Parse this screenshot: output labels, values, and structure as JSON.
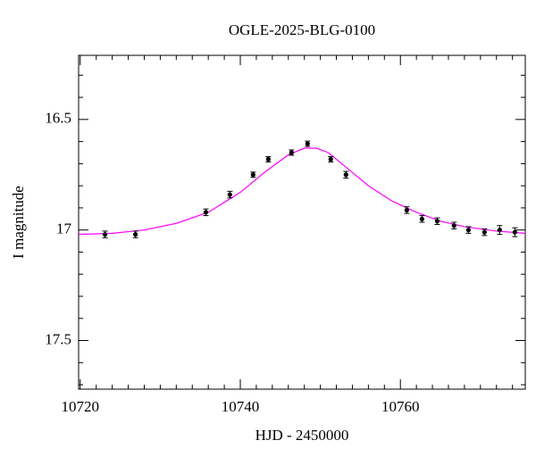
{
  "chart_data": {
    "type": "scatter",
    "title": "OGLE-2025-BLG-0100",
    "x_label": "HJD - 2450000",
    "y_label": "I magnitude",
    "xlim": [
      10719.8,
      10775.6
    ],
    "ylim": [
      17.72,
      16.21
    ],
    "xticks": [
      10720,
      10740,
      10760
    ],
    "yticks": [
      16.5,
      17,
      17.5
    ],
    "xminorticks": [
      10722,
      10724,
      10726,
      10728,
      10730,
      10732,
      10734,
      10736,
      10738,
      10742,
      10744,
      10746,
      10748,
      10750,
      10752,
      10754,
      10756,
      10758,
      10762,
      10764,
      10766,
      10768,
      10770,
      10772,
      10774
    ],
    "yminorticks": [
      16.3,
      16.4,
      16.6,
      16.7,
      16.8,
      16.9,
      17.1,
      17.2,
      17.3,
      17.4,
      17.6,
      17.7
    ],
    "points": {
      "color": "#000000",
      "x": [
        10723.1,
        10726.9,
        10735.7,
        10738.7,
        10741.6,
        10743.5,
        10746.4,
        10748.4,
        10751.3,
        10753.2,
        10760.8,
        10762.7,
        10764.6,
        10766.7,
        10768.5,
        10770.5,
        10772.4,
        10774.3
      ],
      "values": [
        17.02,
        17.02,
        16.92,
        16.84,
        16.75,
        16.68,
        16.65,
        16.61,
        16.68,
        16.75,
        16.91,
        16.95,
        16.96,
        16.98,
        17.0,
        17.01,
        17.0,
        17.01
      ],
      "errors": [
        0.015,
        0.015,
        0.015,
        0.015,
        0.012,
        0.012,
        0.012,
        0.012,
        0.012,
        0.015,
        0.015,
        0.015,
        0.015,
        0.015,
        0.015,
        0.015,
        0.02,
        0.02
      ]
    },
    "model": {
      "color": "#ff00ff",
      "x": [
        10719.8,
        10724,
        10728,
        10732,
        10736,
        10740,
        10743,
        10746,
        10748,
        10749.5,
        10751,
        10753,
        10756,
        10759,
        10762,
        10765,
        10768,
        10772,
        10775.6
      ],
      "values": [
        17.02,
        17.015,
        17.0,
        16.97,
        16.92,
        16.83,
        16.74,
        16.66,
        16.63,
        16.63,
        16.65,
        16.71,
        16.8,
        16.87,
        16.92,
        16.96,
        16.985,
        17.005,
        17.015
      ]
    }
  }
}
